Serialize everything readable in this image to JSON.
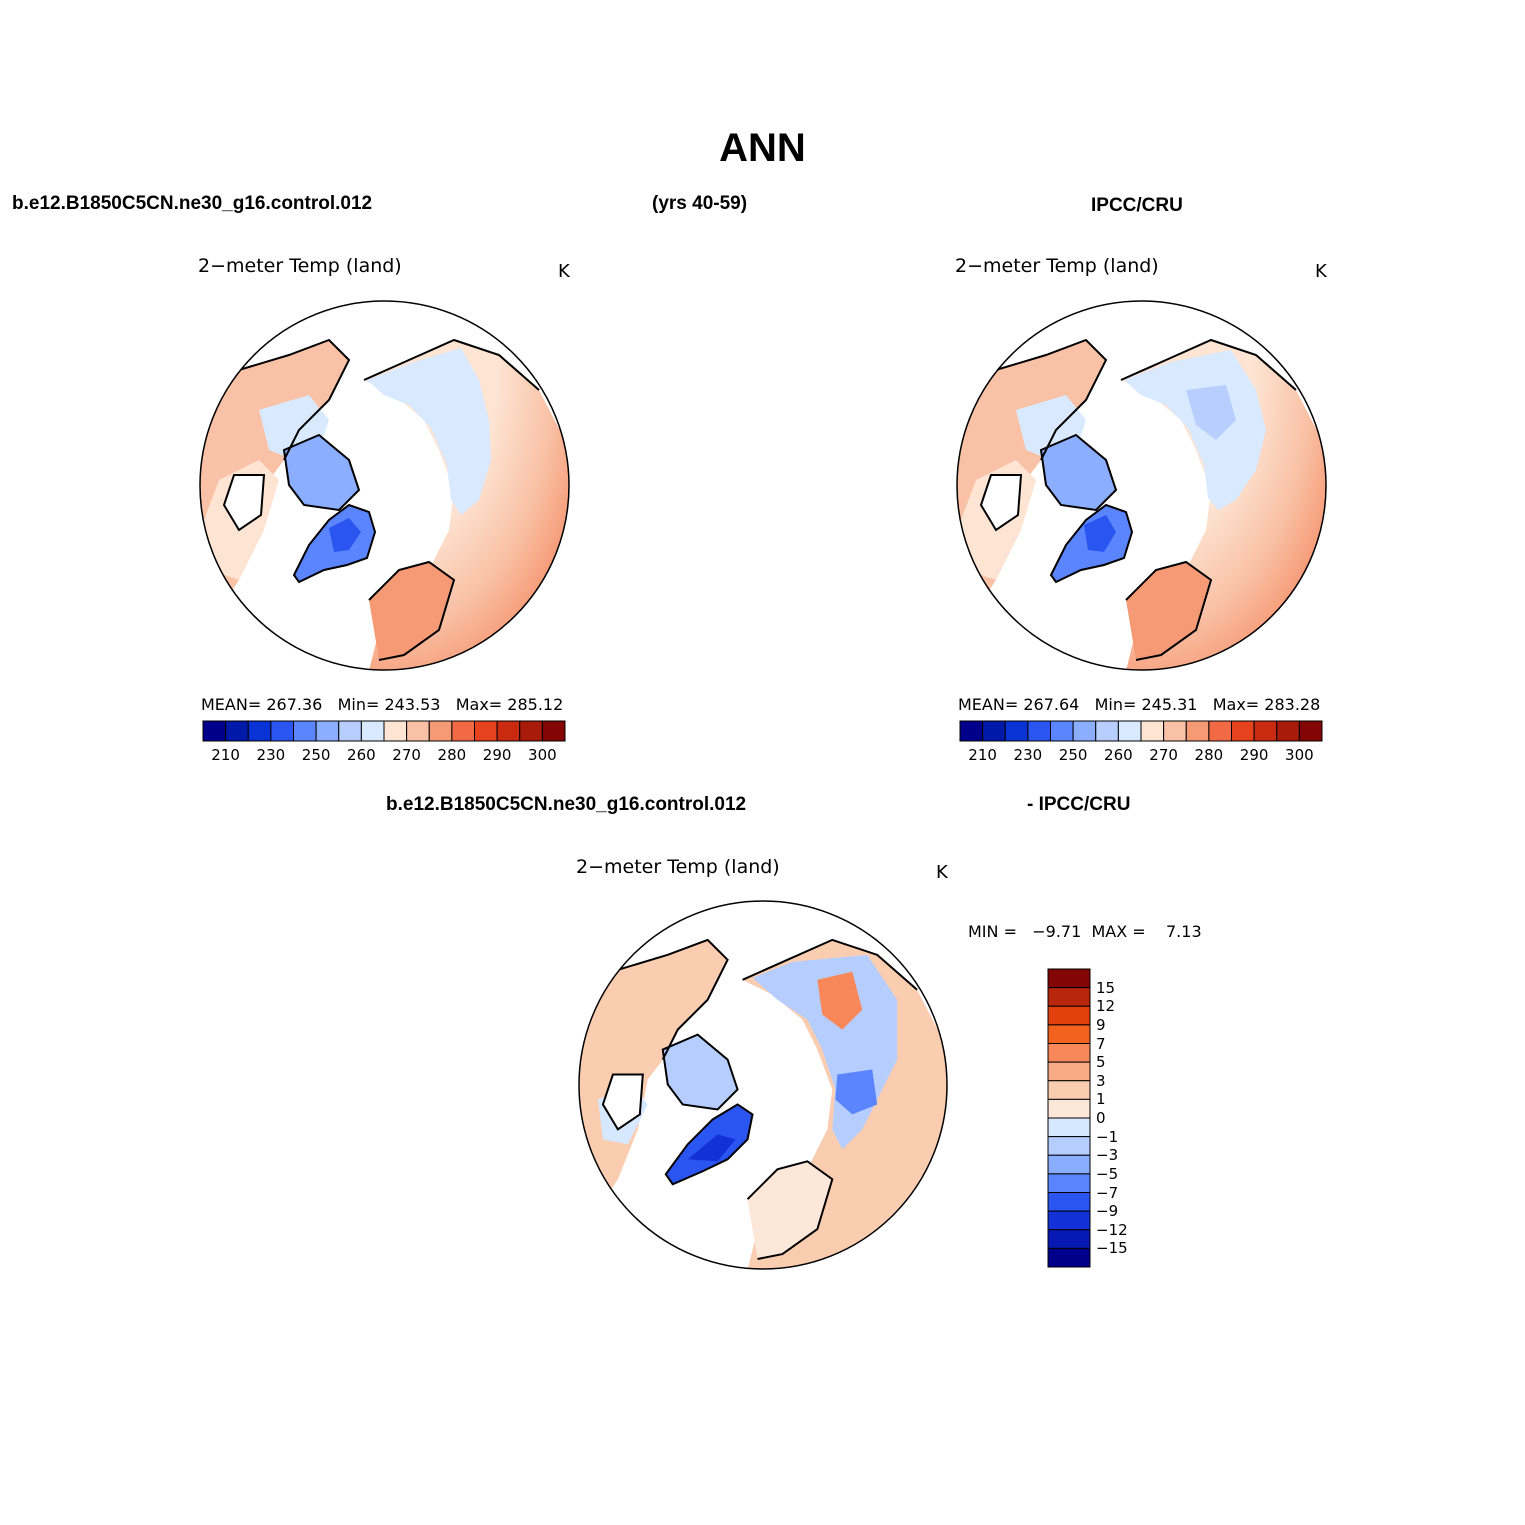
{
  "title": "ANN",
  "header": {
    "left_case": "b.e12.B1850C5CN.ne30_g16.control.012",
    "years": "(yrs 40-59)",
    "right_case": "IPCC/CRU"
  },
  "diff_header": {
    "case": "b.e12.B1850C5CN.ne30_g16.control.012",
    "minus_obs": "- IPCC/CRU"
  },
  "panels": [
    {
      "id": "model",
      "title": "2−meter Temp (land)",
      "units": "K",
      "mean_label": "MEAN=",
      "mean": "267.36",
      "min_label": "Min=",
      "min": "243.53",
      "max_label": "Max=",
      "max": "285.12"
    },
    {
      "id": "obs",
      "title": "2−meter Temp (land)",
      "units": "K",
      "mean_label": "MEAN=",
      "mean": "267.64",
      "min_label": "Min=",
      "min": "245.31",
      "max_label": "Max=",
      "max": "283.28"
    },
    {
      "id": "diff",
      "title": "2−meter Temp (land)",
      "units": "K",
      "min_label": "MIN =",
      "min": "−9.71",
      "max_label": "MAX =",
      "max": "7.13"
    }
  ],
  "abs_colorbar": {
    "colors": [
      "#00008b",
      "#0019a8",
      "#0a33d6",
      "#2a55f0",
      "#5a85ff",
      "#8caeff",
      "#b7ceff",
      "#d9e9ff",
      "#fde4d3",
      "#f9c1a5",
      "#f69a76",
      "#f26a45",
      "#e6421e",
      "#c92a10",
      "#a81a0a",
      "#830505"
    ],
    "labels": [
      "210",
      "230",
      "250",
      "260",
      "270",
      "280",
      "290",
      "300"
    ]
  },
  "diff_colorbar": {
    "colors_top_to_bottom": [
      "#830505",
      "#b8260c",
      "#e2410e",
      "#f3631f",
      "#f8885a",
      "#f9ab86",
      "#fbcdb0",
      "#fde7d9",
      "#d6e8ff",
      "#b5ceff",
      "#8aadff",
      "#5a85ff",
      "#2a55f0",
      "#1232d8",
      "#0719b4",
      "#00008b"
    ],
    "labels": [
      "15",
      "12",
      "9",
      "7",
      "5",
      "3",
      "1",
      "0",
      "−1",
      "−3",
      "−5",
      "−7",
      "−9",
      "−12",
      "−15"
    ]
  }
}
